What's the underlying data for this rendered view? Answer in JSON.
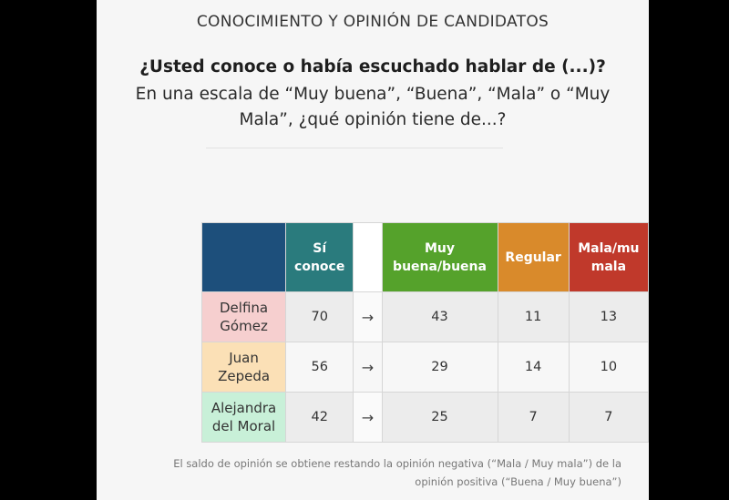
{
  "heading": "CONOCIMIENTO Y OPINIÓN DE CANDIDATOS",
  "question": "¿Usted conoce o había escuchado hablar de (...)?",
  "scale_line1": "En una escala de “Muy buena”, “Buena”, “Mala” o “Muy",
  "scale_line2": "Mala”, ¿qué opinión tiene de...?",
  "table": {
    "headers": {
      "si_conoce_1": "Sí",
      "si_conoce_2": "conoce",
      "muy_buena_1": "Muy",
      "muy_buena_2": "buena/buena",
      "regular": "Regular",
      "mala_1": "Mala/mu",
      "mala_2": "mala"
    },
    "header_colors": {
      "blank": "#1d4f7b",
      "si_conoce": "#2a7b7d",
      "muy_buena": "#55a22b",
      "regular": "#d98a2b",
      "mala": "#c0392b"
    },
    "rows": [
      {
        "name_1": "Delfina",
        "name_2": "Gómez",
        "name_color": "#f6cfcf",
        "si_conoce": "70",
        "arrow": "→",
        "muy_buena": "43",
        "regular": "11",
        "mala": "13"
      },
      {
        "name_1": "Juan",
        "name_2": "Zepeda",
        "name_color": "#fbe0b6",
        "si_conoce": "56",
        "arrow": "→",
        "muy_buena": "29",
        "regular": "14",
        "mala": "10"
      },
      {
        "name_1": "Alejandra",
        "name_2": "del Moral",
        "name_color": "#c8f0d8",
        "si_conoce": "42",
        "arrow": "→",
        "muy_buena": "25",
        "regular": "7",
        "mala": "7"
      }
    ]
  },
  "footnote_line1": "El saldo de opinión se obtiene restando la opinión negativa (“Mala / Muy mala”) de la",
  "footnote_line2": "opinión positiva (“Buena / Muy buena”)"
}
